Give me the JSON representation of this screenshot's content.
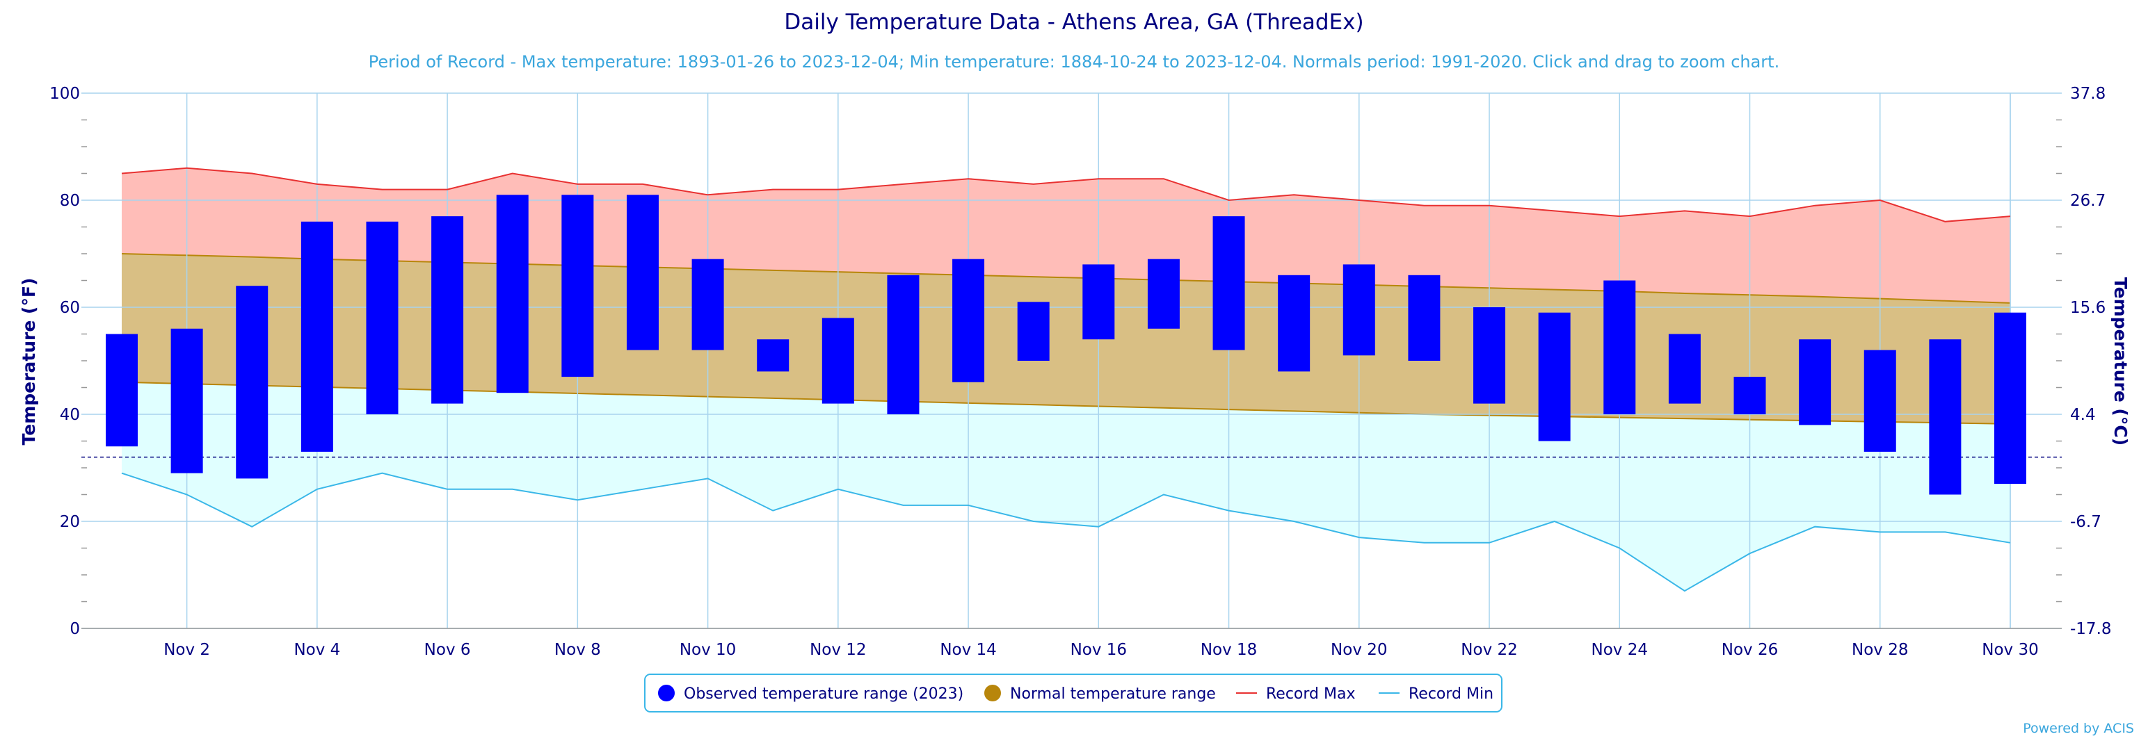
{
  "chart_data": {
    "type": "bar",
    "title": "Daily Temperature Data - Athens Area, GA (ThreadEx)",
    "subtitle": "Period of Record - Max temperature: 1893-01-26 to 2023-12-04; Min temperature: 1884-10-24 to 2023-12-04. Normals period: 1991-2020. Click and drag to zoom chart.",
    "ylabel_left": "Temperature (°F)",
    "ylabel_right": "Temperature (°C)",
    "ylim": [
      0,
      100
    ],
    "yticks_left": [
      "0",
      "20",
      "40",
      "60",
      "80",
      "100"
    ],
    "yticks_right": [
      {
        "value_f": 0,
        "label": "-17.8"
      },
      {
        "value_f": 20,
        "label": "-6.7"
      },
      {
        "value_f": 40,
        "label": "4.4"
      },
      {
        "value_f": 60,
        "label": "15.6"
      },
      {
        "value_f": 80,
        "label": "26.7"
      },
      {
        "value_f": 100,
        "label": "37.8"
      }
    ],
    "xlim": [
      1,
      30
    ],
    "xticks": [
      {
        "day": 2,
        "label": "Nov 2"
      },
      {
        "day": 4,
        "label": "Nov 4"
      },
      {
        "day": 6,
        "label": "Nov 6"
      },
      {
        "day": 8,
        "label": "Nov 8"
      },
      {
        "day": 10,
        "label": "Nov 10"
      },
      {
        "day": 12,
        "label": "Nov 12"
      },
      {
        "day": 14,
        "label": "Nov 14"
      },
      {
        "day": 16,
        "label": "Nov 16"
      },
      {
        "day": 18,
        "label": "Nov 18"
      },
      {
        "day": 20,
        "label": "Nov 20"
      },
      {
        "day": 22,
        "label": "Nov 22"
      },
      {
        "day": 24,
        "label": "Nov 24"
      },
      {
        "day": 26,
        "label": "Nov 26"
      },
      {
        "day": 28,
        "label": "Nov 28"
      },
      {
        "day": 30,
        "label": "Nov 30"
      }
    ],
    "freezing_line_f": 32,
    "days": [
      1,
      2,
      3,
      4,
      5,
      6,
      7,
      8,
      9,
      10,
      11,
      12,
      13,
      14,
      15,
      16,
      17,
      18,
      19,
      20,
      21,
      22,
      23,
      24,
      25,
      26,
      27,
      28,
      29,
      30
    ],
    "series": [
      {
        "name": "Observed temperature range (2023)",
        "color": "#0000ff",
        "high": [
          55,
          56,
          64,
          76,
          76,
          77,
          81,
          81,
          81,
          69,
          54,
          58,
          66,
          69,
          61,
          68,
          69,
          77,
          66,
          68,
          66,
          60,
          59,
          65,
          55,
          47,
          54,
          52,
          54,
          59
        ],
        "low": [
          34,
          29,
          28,
          33,
          40,
          42,
          44,
          47,
          52,
          52,
          48,
          42,
          40,
          46,
          50,
          54,
          56,
          52,
          48,
          51,
          50,
          42,
          35,
          40,
          42,
          40,
          38,
          33,
          25,
          27
        ]
      },
      {
        "name": "Normal temperature range",
        "color": "#b8860b",
        "high": [
          70,
          69.7,
          69.4,
          69.0,
          68.7,
          68.4,
          68.1,
          67.8,
          67.5,
          67.2,
          66.9,
          66.6,
          66.3,
          66.0,
          65.7,
          65.4,
          65.1,
          64.8,
          64.5,
          64.2,
          63.9,
          63.6,
          63.3,
          63.0,
          62.6,
          62.3,
          62.0,
          61.6,
          61.2,
          60.8
        ],
        "low": [
          46,
          45.7,
          45.4,
          45.1,
          44.8,
          44.5,
          44.2,
          43.9,
          43.6,
          43.3,
          43.0,
          42.7,
          42.4,
          42.1,
          41.8,
          41.5,
          41.2,
          40.9,
          40.6,
          40.3,
          40.0,
          39.8,
          39.6,
          39.4,
          39.2,
          39.0,
          38.8,
          38.6,
          38.4,
          38.2
        ]
      },
      {
        "name": "Record Max",
        "color": "#e83131",
        "values": [
          85,
          86,
          85,
          83,
          82,
          82,
          85,
          83,
          83,
          81,
          82,
          82,
          83,
          84,
          83,
          84,
          84,
          80,
          81,
          80,
          79,
          79,
          78,
          77,
          78,
          77,
          79,
          80,
          76,
          77
        ]
      },
      {
        "name": "Record Min",
        "color": "#3ab7e8",
        "values": [
          29,
          25,
          19,
          26,
          29,
          26,
          26,
          24,
          26,
          28,
          22,
          26,
          23,
          23,
          20,
          19,
          25,
          22,
          20,
          17,
          16,
          16,
          20,
          15,
          7,
          14,
          19,
          18,
          18,
          16
        ]
      }
    ],
    "colors": {
      "record_band": "#ffbdb8",
      "normal_band": "#d9bf84",
      "cold_band": "#e0ffff",
      "grid": "#a8d4ee",
      "axis_text": "#000080"
    },
    "legend_position": "bottom-center",
    "grid": true
  },
  "credit": "Powered by ACIS"
}
